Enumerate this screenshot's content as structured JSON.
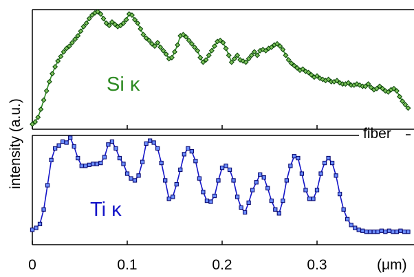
{
  "chart_data": [
    {
      "type": "line",
      "panel": "top",
      "series_label": "Si κ",
      "color": "#2e8b22",
      "marker": "diamond",
      "ylim": [
        0,
        1
      ],
      "x": [
        0.0,
        0.003,
        0.006,
        0.009,
        0.012,
        0.015,
        0.018,
        0.021,
        0.024,
        0.027,
        0.03,
        0.033,
        0.036,
        0.039,
        0.042,
        0.045,
        0.048,
        0.051,
        0.054,
        0.057,
        0.06,
        0.063,
        0.066,
        0.069,
        0.072,
        0.075,
        0.078,
        0.081,
        0.084,
        0.087,
        0.09,
        0.093,
        0.096,
        0.099,
        0.102,
        0.105,
        0.108,
        0.111,
        0.114,
        0.117,
        0.12,
        0.123,
        0.126,
        0.129,
        0.132,
        0.135,
        0.138,
        0.141,
        0.144,
        0.147,
        0.15,
        0.153,
        0.156,
        0.159,
        0.162,
        0.165,
        0.168,
        0.171,
        0.174,
        0.177,
        0.18,
        0.183,
        0.186,
        0.189,
        0.192,
        0.195,
        0.198,
        0.201,
        0.204,
        0.207,
        0.21,
        0.213,
        0.216,
        0.219,
        0.222,
        0.225,
        0.228,
        0.231,
        0.234,
        0.237,
        0.24,
        0.243,
        0.246,
        0.249,
        0.252,
        0.255,
        0.258,
        0.261,
        0.264,
        0.267,
        0.27,
        0.273,
        0.276,
        0.279,
        0.282,
        0.285,
        0.288,
        0.291,
        0.294,
        0.297,
        0.3,
        0.303,
        0.306,
        0.309,
        0.312,
        0.315,
        0.318,
        0.321,
        0.324,
        0.327,
        0.33,
        0.333,
        0.336,
        0.339,
        0.342,
        0.345,
        0.348,
        0.351,
        0.354,
        0.357,
        0.36,
        0.363,
        0.366,
        0.369,
        0.372,
        0.375,
        0.378,
        0.381,
        0.384,
        0.387,
        0.39,
        0.393,
        0.396
      ],
      "y": [
        0.02,
        0.04,
        0.08,
        0.15,
        0.23,
        0.31,
        0.39,
        0.46,
        0.52,
        0.57,
        0.61,
        0.65,
        0.68,
        0.7,
        0.73,
        0.76,
        0.79,
        0.83,
        0.87,
        0.9,
        0.94,
        0.97,
        0.99,
        1.0,
        0.98,
        0.94,
        0.9,
        0.88,
        0.91,
        0.89,
        0.87,
        0.88,
        0.9,
        0.93,
        0.98,
        0.97,
        0.93,
        0.9,
        0.85,
        0.8,
        0.77,
        0.75,
        0.72,
        0.7,
        0.73,
        0.69,
        0.66,
        0.63,
        0.59,
        0.6,
        0.65,
        0.71,
        0.79,
        0.8,
        0.78,
        0.75,
        0.72,
        0.69,
        0.66,
        0.6,
        0.56,
        0.58,
        0.62,
        0.66,
        0.7,
        0.74,
        0.75,
        0.73,
        0.68,
        0.62,
        0.56,
        0.59,
        0.62,
        0.58,
        0.57,
        0.56,
        0.59,
        0.62,
        0.65,
        0.62,
        0.66,
        0.67,
        0.66,
        0.68,
        0.69,
        0.71,
        0.72,
        0.7,
        0.67,
        0.62,
        0.58,
        0.55,
        0.53,
        0.51,
        0.49,
        0.5,
        0.48,
        0.47,
        0.45,
        0.43,
        0.44,
        0.42,
        0.41,
        0.4,
        0.41,
        0.39,
        0.39,
        0.4,
        0.38,
        0.37,
        0.37,
        0.38,
        0.36,
        0.36,
        0.37,
        0.36,
        0.35,
        0.35,
        0.37,
        0.34,
        0.32,
        0.33,
        0.35,
        0.33,
        0.31,
        0.3,
        0.32,
        0.33,
        0.31,
        0.26,
        0.22,
        0.19,
        0.16
      ]
    },
    {
      "type": "line",
      "panel": "bottom",
      "series_label": "Ti κ",
      "color": "#1414c8",
      "marker": "square",
      "ylim": [
        0,
        1
      ],
      "xlim": [
        0,
        0.4
      ],
      "xticks": [
        "0",
        "0.1",
        "0.2",
        "0.3"
      ],
      "xtick_values": [
        0,
        0.1,
        0.2,
        0.3
      ],
      "xunit": "(μm)",
      "ylabel": "intensity (a.u.)",
      "x": [
        0.0,
        0.004,
        0.008,
        0.012,
        0.016,
        0.02,
        0.024,
        0.028,
        0.032,
        0.036,
        0.04,
        0.044,
        0.048,
        0.052,
        0.056,
        0.06,
        0.064,
        0.068,
        0.072,
        0.076,
        0.08,
        0.084,
        0.088,
        0.092,
        0.096,
        0.1,
        0.104,
        0.108,
        0.112,
        0.116,
        0.12,
        0.124,
        0.128,
        0.132,
        0.136,
        0.14,
        0.144,
        0.148,
        0.152,
        0.156,
        0.16,
        0.164,
        0.168,
        0.172,
        0.176,
        0.18,
        0.184,
        0.188,
        0.192,
        0.196,
        0.2,
        0.204,
        0.208,
        0.212,
        0.216,
        0.22,
        0.224,
        0.228,
        0.232,
        0.236,
        0.24,
        0.244,
        0.248,
        0.252,
        0.256,
        0.26,
        0.264,
        0.268,
        0.272,
        0.276,
        0.28,
        0.284,
        0.288,
        0.292,
        0.296,
        0.3,
        0.304,
        0.308,
        0.312,
        0.316,
        0.32,
        0.324,
        0.328,
        0.332,
        0.336,
        0.34,
        0.344,
        0.348,
        0.352,
        0.356,
        0.36,
        0.364,
        0.368,
        0.372,
        0.376,
        0.38,
        0.384,
        0.388,
        0.392,
        0.396
      ],
      "y": [
        0.04,
        0.06,
        0.1,
        0.25,
        0.5,
        0.76,
        0.88,
        0.91,
        0.95,
        0.94,
        0.99,
        0.9,
        0.78,
        0.7,
        0.7,
        0.71,
        0.72,
        0.72,
        0.73,
        0.79,
        0.92,
        0.95,
        0.88,
        0.78,
        0.72,
        0.62,
        0.57,
        0.55,
        0.6,
        0.74,
        0.93,
        0.96,
        0.94,
        0.88,
        0.73,
        0.55,
        0.36,
        0.38,
        0.51,
        0.66,
        0.82,
        0.88,
        0.85,
        0.75,
        0.57,
        0.43,
        0.34,
        0.33,
        0.39,
        0.55,
        0.68,
        0.7,
        0.66,
        0.55,
        0.38,
        0.27,
        0.22,
        0.32,
        0.45,
        0.53,
        0.61,
        0.58,
        0.47,
        0.34,
        0.25,
        0.21,
        0.34,
        0.55,
        0.7,
        0.8,
        0.78,
        0.62,
        0.45,
        0.36,
        0.36,
        0.45,
        0.62,
        0.73,
        0.78,
        0.73,
        0.6,
        0.41,
        0.25,
        0.15,
        0.09,
        0.06,
        0.04,
        0.03,
        0.02,
        0.02,
        0.02,
        0.02,
        0.03,
        0.02,
        0.03,
        0.02,
        0.02,
        0.03,
        0.02,
        0.02
      ]
    }
  ],
  "labels": {
    "si": "Si κ",
    "ti": "Ti κ",
    "fiber": "fiber",
    "ylabel": "intensity (a.u.)",
    "xunit": "(μm)",
    "xticks": [
      "0",
      "0.1",
      "0.2",
      "0.3"
    ]
  }
}
